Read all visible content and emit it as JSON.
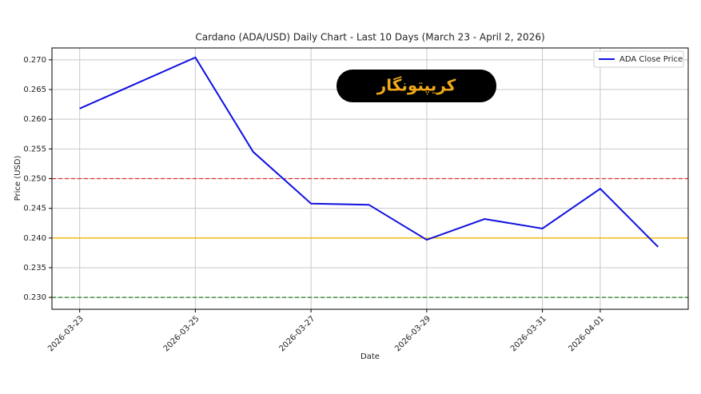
{
  "chart_data": {
    "type": "line",
    "title": "Cardano (ADA/USD) Daily Chart - Last 10 Days (March 23 - April 2, 2026)",
    "x_label": "Date",
    "y_label": "Price (USD)",
    "x": [
      "2026-03-23",
      "2026-03-25",
      "2026-03-26",
      "2026-03-27",
      "2026-03-28",
      "2026-03-29",
      "2026-03-30",
      "2026-03-31",
      "2026-04-01",
      "2026-04-02"
    ],
    "series": [
      {
        "name": "ADA Close Price",
        "color": "#1010e0",
        "values": [
          0.2618,
          0.2704,
          0.2545,
          0.2458,
          0.2456,
          0.2397,
          0.2432,
          0.2416,
          0.2483,
          0.2385
        ]
      }
    ],
    "hlines": [
      {
        "value": 0.25,
        "color": "#e03030",
        "style": "dashed"
      },
      {
        "value": 0.24,
        "color": "#f0b400",
        "style": "solid"
      },
      {
        "value": 0.23,
        "color": "#208020",
        "style": "dashed"
      }
    ],
    "xlim": [
      "2026-03-22T12:30",
      "2026-04-02T12:30"
    ],
    "xticks": [
      "2026-03-23",
      "2026-03-25",
      "2026-03-27",
      "2026-03-29",
      "2026-03-31",
      "2026-04-01"
    ],
    "ylim": [
      0.228,
      0.272
    ],
    "yticks": [
      {
        "value": 0.23,
        "label": "0.230"
      },
      {
        "value": 0.235,
        "label": "0.235"
      },
      {
        "value": 0.24,
        "label": "0.240"
      },
      {
        "value": 0.245,
        "label": "0.245"
      },
      {
        "value": 0.25,
        "label": "0.250"
      },
      {
        "value": 0.255,
        "label": "0.255"
      },
      {
        "value": 0.26,
        "label": "0.260"
      },
      {
        "value": 0.265,
        "label": "0.265"
      },
      {
        "value": 0.27,
        "label": "0.270"
      }
    ],
    "grid": true,
    "legend": "upper right",
    "watermark": "کریپتونگار"
  }
}
